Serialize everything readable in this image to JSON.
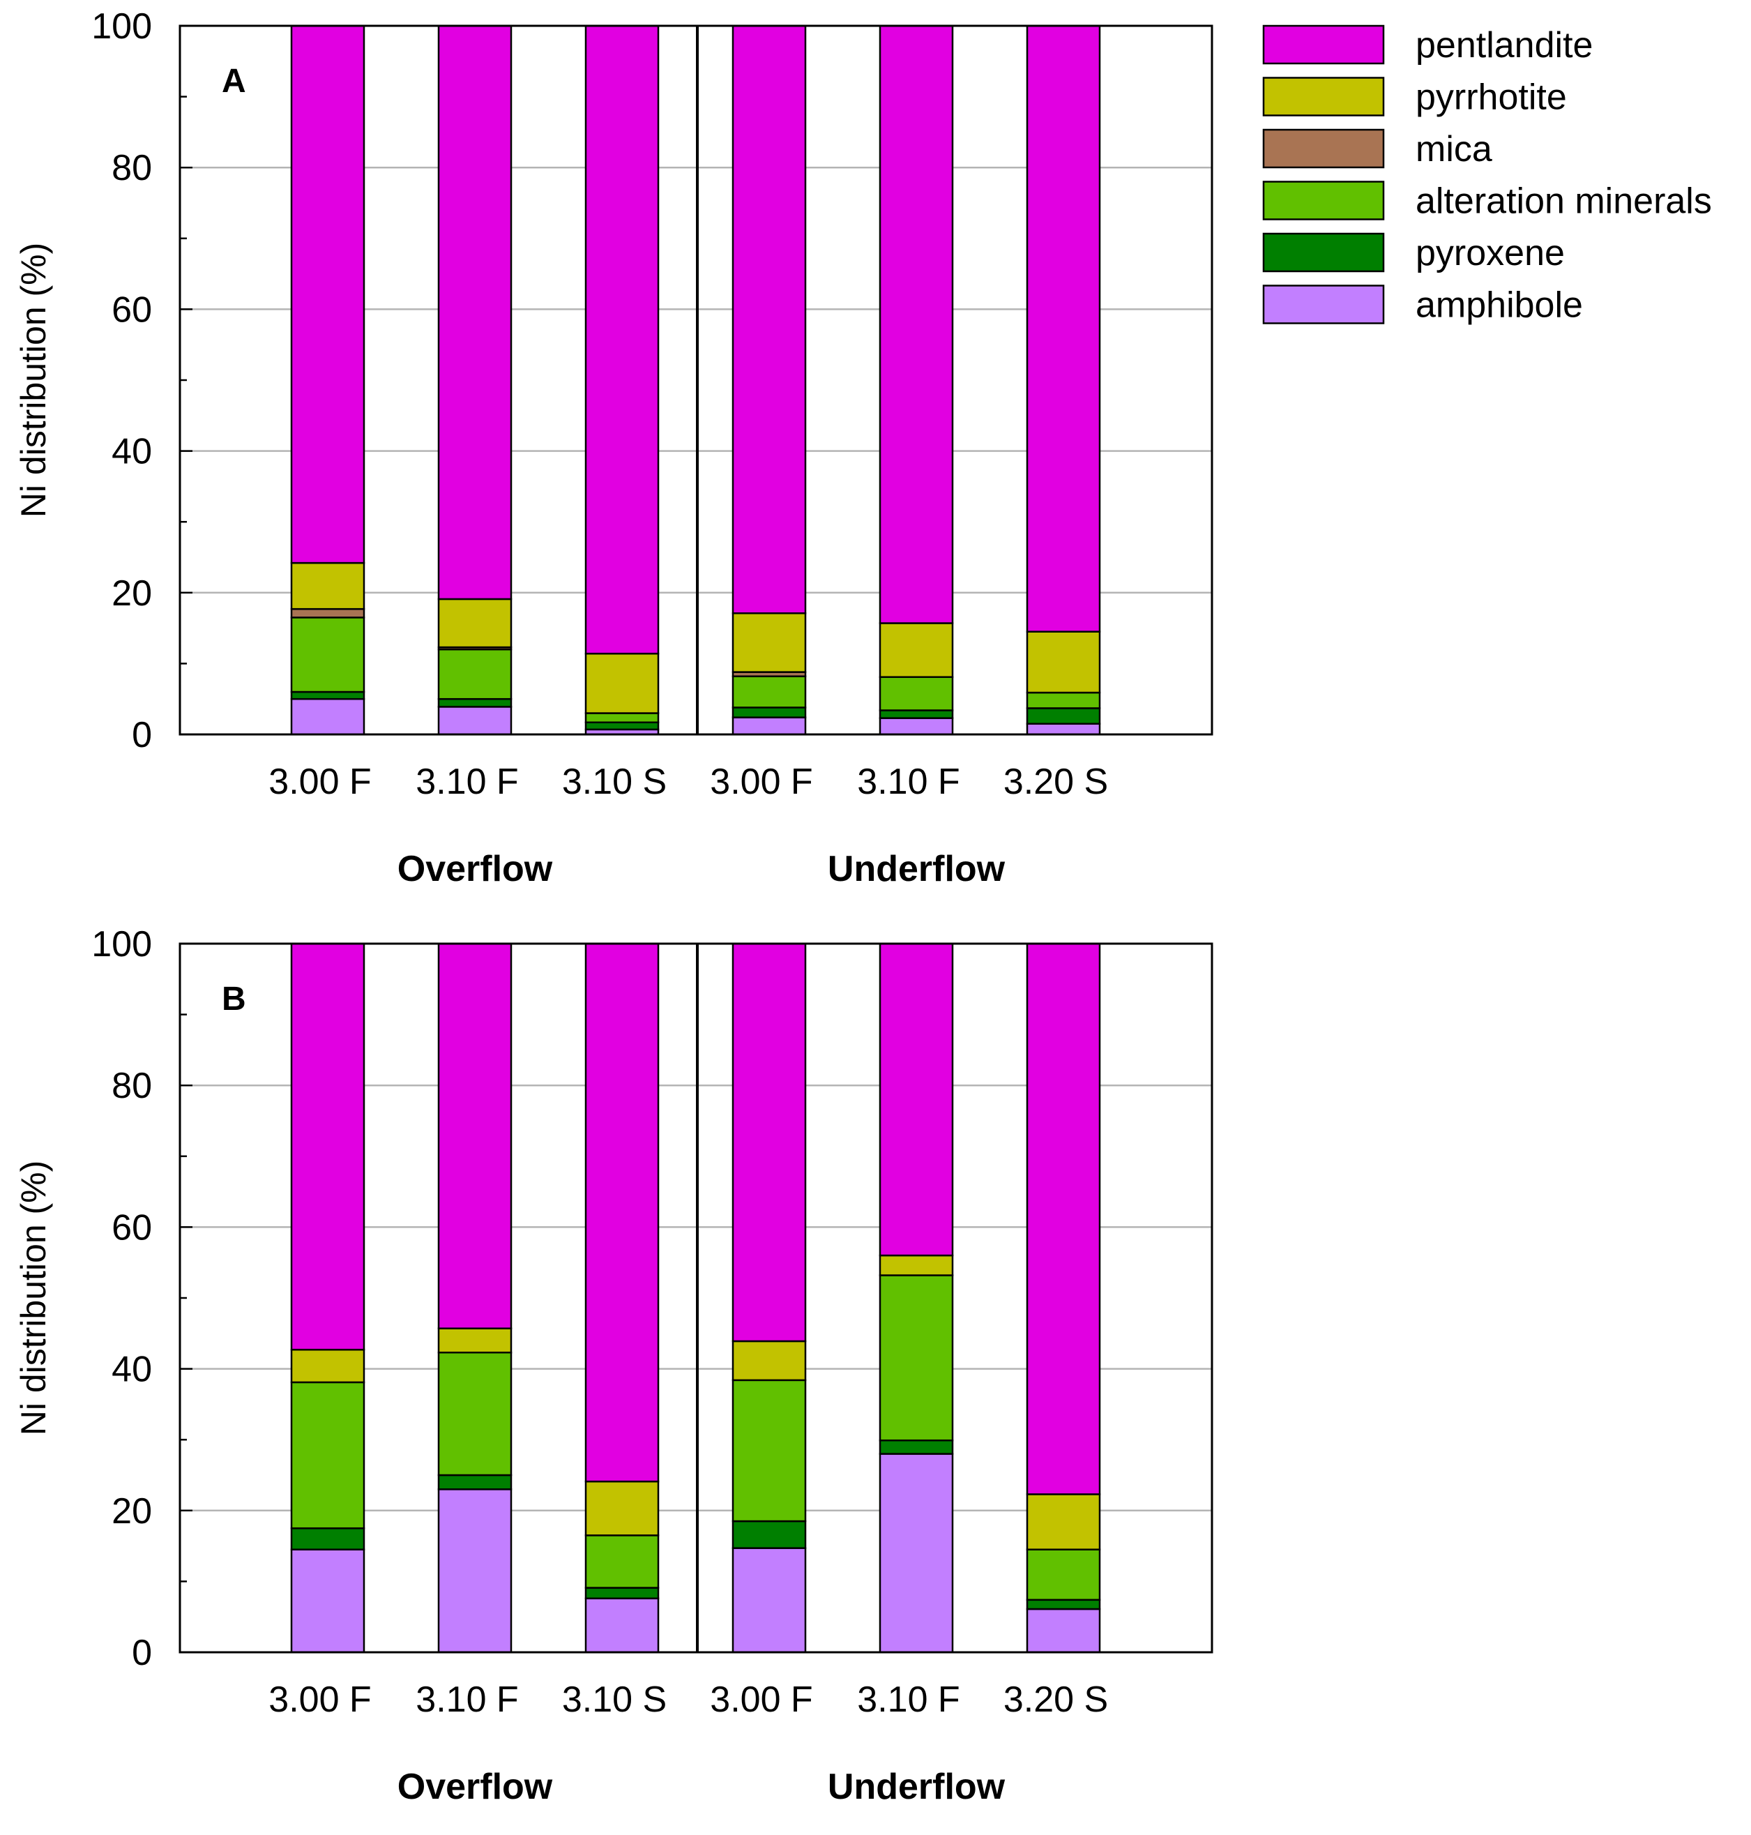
{
  "colors": {
    "pentlandite": "#e100e1",
    "pyrrhotite": "#c2c200",
    "mica": "#a97453",
    "alteration minerals": "#61c000",
    "pyroxene": "#007f00",
    "amphibole": "#c27fff"
  },
  "legend": {
    "items": [
      "pentlandite",
      "pyrrhotite",
      "mica",
      "alteration minerals",
      "pyroxene",
      "amphibole"
    ]
  },
  "chart_data": [
    {
      "type": "bar",
      "stacked": true,
      "panel": "A",
      "ylabel": "Ni distribution  (%)",
      "ylim": [
        0,
        100
      ],
      "yticks": [
        "0",
        "20",
        "40",
        "60",
        "80",
        "100"
      ],
      "grid": true,
      "legend_position": "right",
      "categories": [
        "3.00 F",
        "3.10 F",
        "3.10 S",
        "3.00 F",
        "3.10 F",
        "3.20 S"
      ],
      "groups": [
        {
          "label": "Overflow",
          "span": [
            0,
            2
          ]
        },
        {
          "label": "Underflow",
          "span": [
            3,
            5
          ]
        }
      ],
      "series": [
        {
          "name": "amphibole",
          "values": [
            5.0,
            3.9,
            0.7,
            2.4,
            2.3,
            1.5
          ]
        },
        {
          "name": "pyroxene",
          "values": [
            1.0,
            1.1,
            1.0,
            1.4,
            1.1,
            2.2
          ]
        },
        {
          "name": "alteration minerals",
          "values": [
            10.5,
            7.0,
            1.3,
            4.4,
            4.7,
            2.2
          ]
        },
        {
          "name": "mica",
          "values": [
            1.2,
            0.3,
            0.0,
            0.6,
            0.0,
            0.0
          ]
        },
        {
          "name": "pyrrhotite",
          "values": [
            6.5,
            6.8,
            8.4,
            8.3,
            7.6,
            8.6
          ]
        },
        {
          "name": "pentlandite",
          "values": [
            75.8,
            80.9,
            88.6,
            82.9,
            84.3,
            85.5
          ]
        }
      ]
    },
    {
      "type": "bar",
      "stacked": true,
      "panel": "B",
      "ylabel": "Ni distribution  (%)",
      "ylim": [
        0,
        100
      ],
      "yticks": [
        "0",
        "20",
        "40",
        "60",
        "80",
        "100"
      ],
      "grid": true,
      "categories": [
        "3.00 F",
        "3.10 F",
        "3.10 S",
        "3.00 F",
        "3.10 F",
        "3.20 S"
      ],
      "groups": [
        {
          "label": "Overflow",
          "span": [
            0,
            2
          ]
        },
        {
          "label": "Underflow",
          "span": [
            3,
            5
          ]
        }
      ],
      "series": [
        {
          "name": "amphibole",
          "values": [
            14.5,
            23.0,
            7.6,
            14.7,
            28.0,
            6.1
          ]
        },
        {
          "name": "pyroxene",
          "values": [
            3.0,
            2.0,
            1.5,
            3.8,
            1.9,
            1.3
          ]
        },
        {
          "name": "alteration minerals",
          "values": [
            20.6,
            17.3,
            7.4,
            19.9,
            23.3,
            7.1
          ]
        },
        {
          "name": "mica",
          "values": [
            0.0,
            0.0,
            0.0,
            0.0,
            0.0,
            0.0
          ]
        },
        {
          "name": "pyrrhotite",
          "values": [
            4.6,
            3.4,
            7.6,
            5.5,
            2.8,
            7.8
          ]
        },
        {
          "name": "pentlandite",
          "values": [
            57.3,
            54.3,
            75.9,
            56.1,
            44.0,
            77.7
          ]
        }
      ]
    }
  ]
}
